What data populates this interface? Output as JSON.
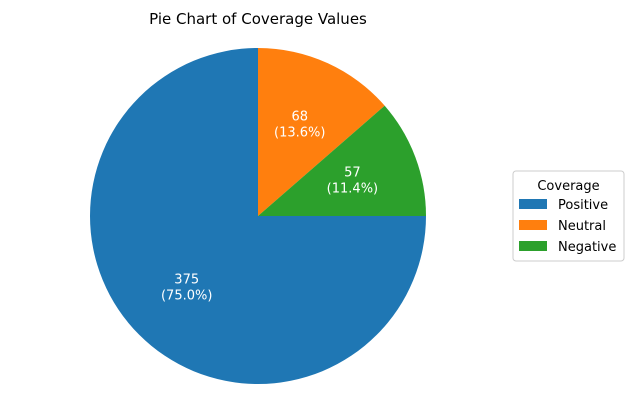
{
  "chart_data": {
    "type": "pie",
    "title": "Pie Chart of Coverage Values",
    "categories": [
      "Positive",
      "Neutral",
      "Negative"
    ],
    "values": [
      375,
      68,
      57
    ],
    "labels": [
      "375\n(75.0%)",
      "68\n(13.6%)",
      "57\n(11.4%)"
    ],
    "colors": [
      "#1f77b4",
      "#ff7f0e",
      "#2ca02c"
    ],
    "start_angle_deg": 0,
    "direction": "clockwise",
    "legend": {
      "title": "Coverage",
      "placement": "center-right",
      "entries": [
        "Positive",
        "Neutral",
        "Negative"
      ]
    }
  }
}
